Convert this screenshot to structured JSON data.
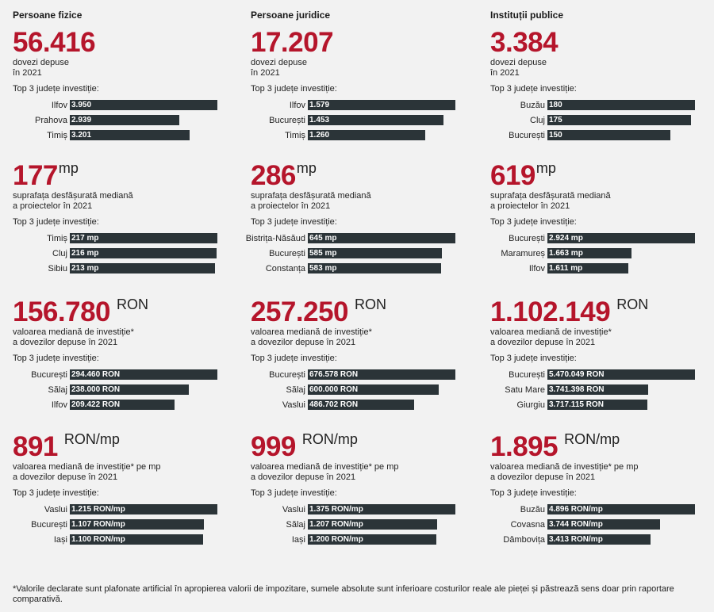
{
  "chart_data": [
    {
      "type": "bar",
      "column": "Persoane fizice",
      "value": "56.416",
      "unit": "",
      "description": [
        "dovezi depuse",
        "în 2021"
      ],
      "top3_label": "Top 3 județe investiție:",
      "categories": [
        "Ilfov",
        "Prahova",
        "Timiș"
      ],
      "values": [
        3950,
        2939,
        3201
      ],
      "value_labels": [
        "3.950",
        "2.939",
        "3.201"
      ]
    },
    {
      "type": "bar",
      "column": "Persoane fizice",
      "value": "177",
      "unit": "mp",
      "description": [
        "suprafața desfășurată mediană",
        "a proiectelor în 2021"
      ],
      "top3_label": "Top 3 județe investiție:",
      "categories": [
        "Timiș",
        "Cluj",
        "Sibiu"
      ],
      "values": [
        217,
        216,
        213
      ],
      "value_labels": [
        "217 mp",
        "216 mp",
        "213 mp"
      ]
    },
    {
      "type": "bar",
      "column": "Persoane fizice",
      "value": "156.780",
      "unit": "RON",
      "description": [
        "valoarea mediană de investiție*",
        "a dovezilor depuse în 2021"
      ],
      "top3_label": "Top 3 județe investiție:",
      "categories": [
        "București",
        "Sălaj",
        "Ilfov"
      ],
      "values": [
        294460,
        238000,
        209422
      ],
      "value_labels": [
        "294.460 RON",
        "238.000 RON",
        "209.422 RON"
      ]
    },
    {
      "type": "bar",
      "column": "Persoane fizice",
      "value": "891",
      "unit": "RON/mp",
      "description": [
        "valoarea mediană de investiție* pe mp",
        "a dovezilor depuse în 2021"
      ],
      "top3_label": "Top 3 județe investiție:",
      "categories": [
        "Vaslui",
        "București",
        "Iași"
      ],
      "values": [
        1215,
        1107,
        1100
      ],
      "value_labels": [
        "1.215 RON/mp",
        "1.107 RON/mp",
        "1.100 RON/mp"
      ]
    },
    {
      "type": "bar",
      "column": "Persoane juridice",
      "value": "17.207",
      "unit": "",
      "description": [
        "dovezi depuse",
        "în 2021"
      ],
      "top3_label": "Top 3 județe investiție:",
      "categories": [
        "Ilfov",
        "București",
        "Timiș"
      ],
      "values": [
        1579,
        1453,
        1260
      ],
      "value_labels": [
        "1.579",
        "1.453",
        "1.260"
      ]
    },
    {
      "type": "bar",
      "column": "Persoane juridice",
      "value": "286",
      "unit": "mp",
      "description": [
        "suprafața desfășurată mediană",
        "a proiectelor în 2021"
      ],
      "top3_label": "Top 3 județe investiție:",
      "categories": [
        "Bistrița-Năsăud",
        "București",
        "Constanța"
      ],
      "values": [
        645,
        585,
        583
      ],
      "value_labels": [
        "645 mp",
        "585 mp",
        "583 mp"
      ]
    },
    {
      "type": "bar",
      "column": "Persoane juridice",
      "value": "257.250",
      "unit": "RON",
      "description": [
        "valoarea mediană de investiție*",
        "a dovezilor depuse în 2021"
      ],
      "top3_label": "Top 3 județe investiție:",
      "categories": [
        "București",
        "Sălaj",
        "Vaslui"
      ],
      "values": [
        676578,
        600000,
        486702
      ],
      "value_labels": [
        "676.578 RON",
        "600.000 RON",
        "486.702 RON"
      ]
    },
    {
      "type": "bar",
      "column": "Persoane juridice",
      "value": "999",
      "unit": "RON/mp",
      "description": [
        "valoarea mediană de investiție* pe mp",
        "a dovezilor depuse în 2021"
      ],
      "top3_label": "Top 3 județe investiție:",
      "categories": [
        "Vaslui",
        "Sălaj",
        "Iași"
      ],
      "values": [
        1375,
        1207,
        1200
      ],
      "value_labels": [
        "1.375 RON/mp",
        "1.207 RON/mp",
        "1.200 RON/mp"
      ]
    },
    {
      "type": "bar",
      "column": "Instituții publice",
      "value": "3.384",
      "unit": "",
      "description": [
        "dovezi depuse",
        "în 2021"
      ],
      "top3_label": "Top 3 județe investiție:",
      "categories": [
        "Buzău",
        "Cluj",
        "București"
      ],
      "values": [
        180,
        175,
        150
      ],
      "value_labels": [
        "180",
        "175",
        "150"
      ]
    },
    {
      "type": "bar",
      "column": "Instituții publice",
      "value": "619",
      "unit": "mp",
      "description": [
        "suprafața desfășurată mediană",
        "a proiectelor în 2021"
      ],
      "top3_label": "Top 3 județe investiție:",
      "categories": [
        "București",
        "Maramureș",
        "Ilfov"
      ],
      "values": [
        2924,
        1663,
        1611
      ],
      "value_labels": [
        "2.924 mp",
        "1.663 mp",
        "1.611 mp"
      ]
    },
    {
      "type": "bar",
      "column": "Instituții publice",
      "value": "1.102.149",
      "unit": "RON",
      "description": [
        "valoarea mediană de investiție*",
        "a dovezilor depuse în 2021"
      ],
      "top3_label": "Top 3 județe investiție:",
      "categories": [
        "București",
        "Satu Mare",
        "Giurgiu"
      ],
      "values": [
        5470049,
        3741398,
        3717115
      ],
      "value_labels": [
        "5.470.049 RON",
        "3.741.398 RON",
        "3.717.115 RON"
      ]
    },
    {
      "type": "bar",
      "column": "Instituții publice",
      "value": "1.895",
      "unit": "RON/mp",
      "description": [
        "valoarea mediană de investiție* pe mp",
        "a dovezilor depuse în 2021"
      ],
      "top3_label": "Top 3 județe investiție:",
      "categories": [
        "Buzău",
        "Covasna",
        "Dâmbovița"
      ],
      "values": [
        4896,
        3744,
        3413
      ],
      "value_labels": [
        "4.896 RON/mp",
        "3.744 RON/mp",
        "3.413 RON/mp"
      ]
    }
  ],
  "columns": [
    "Persoane fizice",
    "Persoane juridice",
    "Instituții publice"
  ],
  "colors": {
    "accent": "#b5152b",
    "bar": "#2b3438",
    "background": "#f2f2f2"
  },
  "footnote": "*Valorile declarate sunt plafonate artificial în apropierea valorii de impozitare, sumele absolute sunt inferioare costurilor reale ale pieței și păstrează sens doar prin raportare comparativă."
}
